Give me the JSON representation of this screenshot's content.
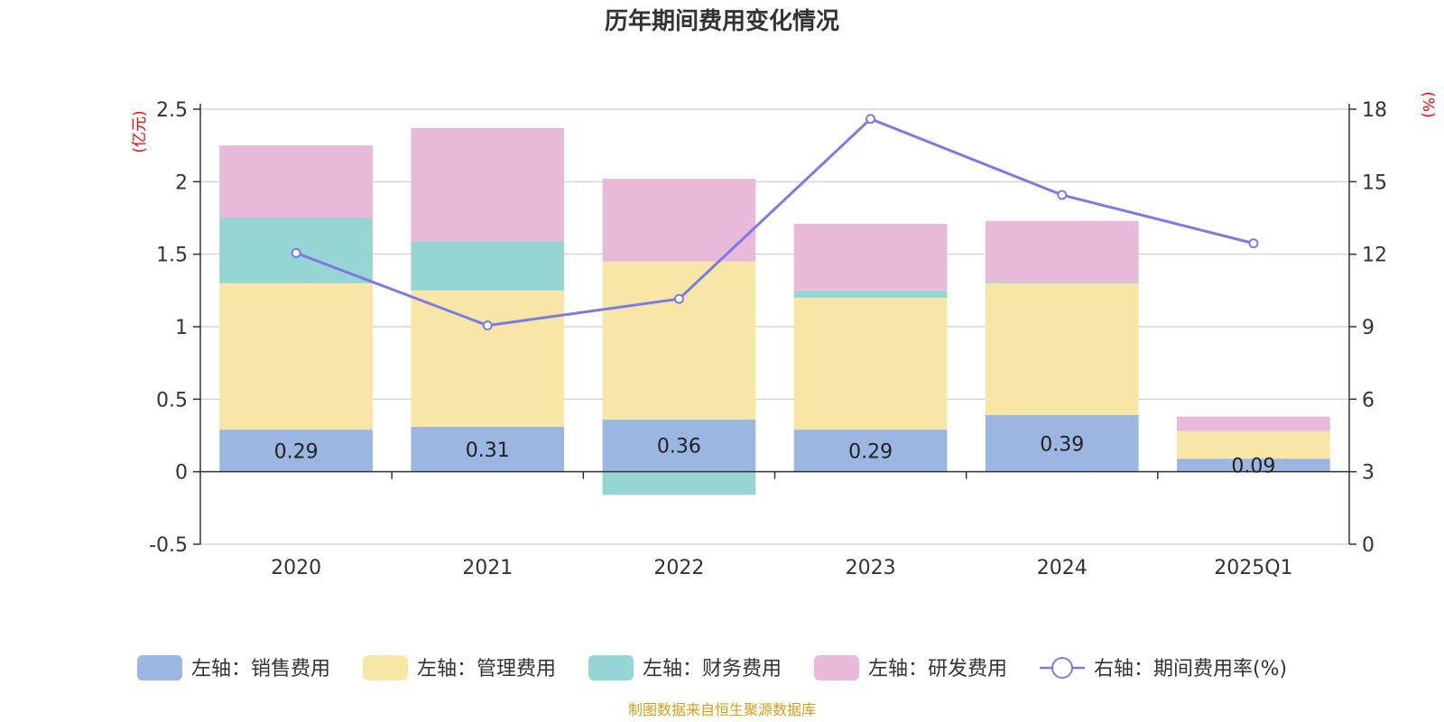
{
  "chart_data": {
    "type": "bar",
    "title": "历年期间费用变化情况",
    "left_unit": "(亿元)",
    "right_unit": "(%)",
    "categories": [
      "2020",
      "2021",
      "2022",
      "2023",
      "2024",
      "2025Q1"
    ],
    "left_axis": {
      "min": -0.5,
      "max": 2.5,
      "ticks": [
        "-0.5",
        "0",
        "0.5",
        "1",
        "1.5",
        "2",
        "2.5"
      ],
      "tick_values": [
        -0.5,
        0,
        0.5,
        1,
        1.5,
        2,
        2.5
      ]
    },
    "right_axis": {
      "min": 0,
      "max": 18,
      "ticks": [
        "0",
        "3",
        "6",
        "9",
        "12",
        "15",
        "18"
      ],
      "tick_values": [
        0,
        3,
        6,
        9,
        12,
        15,
        18
      ]
    },
    "series": [
      {
        "name": "左轴：销售费用",
        "type": "bar",
        "axis": "left",
        "color": "#9bb6e0",
        "values": [
          0.29,
          0.31,
          0.36,
          0.29,
          0.39,
          0.09
        ],
        "labels": [
          "0.29",
          "0.31",
          "0.36",
          "0.29",
          "0.39",
          "0.09"
        ]
      },
      {
        "name": "左轴：管理费用",
        "type": "bar",
        "axis": "left",
        "color": "#f8e6a6",
        "values": [
          1.01,
          0.94,
          1.09,
          0.91,
          0.91,
          0.19
        ]
      },
      {
        "name": "左轴：财务费用",
        "type": "bar",
        "axis": "left",
        "color": "#97d4d4",
        "values": [
          0.45,
          0.34,
          -0.16,
          0.05,
          0.01,
          0.0
        ]
      },
      {
        "name": "左轴：研发费用",
        "type": "bar",
        "axis": "left",
        "color": "#e8b9d9",
        "values": [
          0.5,
          0.78,
          0.57,
          0.46,
          0.42,
          0.1
        ]
      },
      {
        "name": "右轴：期间费用率(%)",
        "type": "line",
        "axis": "right",
        "color": "#7b7be8",
        "values": [
          12.05,
          9.05,
          10.15,
          17.6,
          14.45,
          12.45
        ]
      }
    ],
    "grid": true,
    "legend_position": "bottom"
  },
  "source": "制图数据来自恒生聚源数据库"
}
